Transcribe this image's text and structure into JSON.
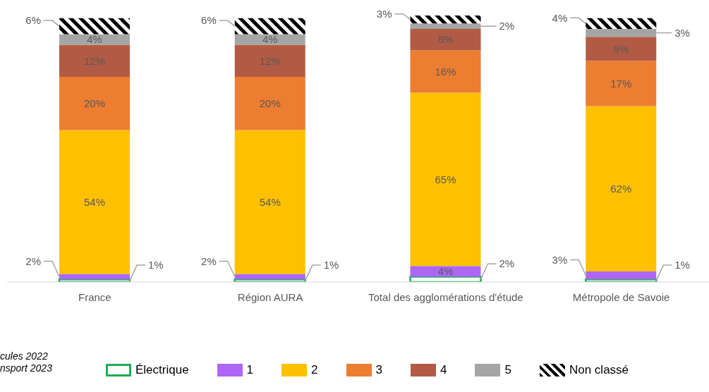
{
  "chart_data": {
    "type": "bar",
    "stacked": true,
    "data_labels": true,
    "legend": "bottom",
    "ylim": [
      0,
      100
    ],
    "categories": [
      "France",
      "Région AURA",
      "Total des agglomérations d'étude",
      "Métropole de Savoie"
    ],
    "series": [
      {
        "name": "Électrique",
        "color": "#1aaf54",
        "values": [
          1,
          1,
          2,
          1
        ],
        "value_labels": [
          "1%",
          "1%",
          "2%",
          "1%"
        ]
      },
      {
        "name": "1",
        "color": "#ad66f5",
        "values": [
          2,
          2,
          4,
          3
        ],
        "value_labels": [
          "2%",
          "2%",
          "4%",
          "3%"
        ]
      },
      {
        "name": "2",
        "color": "#ffc000",
        "values": [
          54,
          54,
          65,
          62
        ],
        "value_labels": [
          "54%",
          "54%",
          "65%",
          "62%"
        ]
      },
      {
        "name": "3",
        "color": "#ed7d31",
        "values": [
          20,
          20,
          16,
          17
        ],
        "value_labels": [
          "20%",
          "20%",
          "16%",
          "17%"
        ]
      },
      {
        "name": "4",
        "color": "#b25b44",
        "values": [
          12,
          12,
          8,
          9
        ],
        "value_labels": [
          "12%",
          "12%",
          "8%",
          "9%"
        ]
      },
      {
        "name": "5",
        "color": "#a5a5a5",
        "values": [
          4,
          4,
          2,
          3
        ],
        "value_labels": [
          "4%",
          "4%",
          "2%",
          "3%"
        ]
      },
      {
        "name": "Non classé",
        "color": "#000000",
        "values": [
          6,
          6,
          3,
          4
        ],
        "value_labels": [
          "6%",
          "6%",
          "3%",
          "4%"
        ]
      }
    ],
    "annotations": [
      "cules 2022",
      "nsport 2023"
    ]
  }
}
